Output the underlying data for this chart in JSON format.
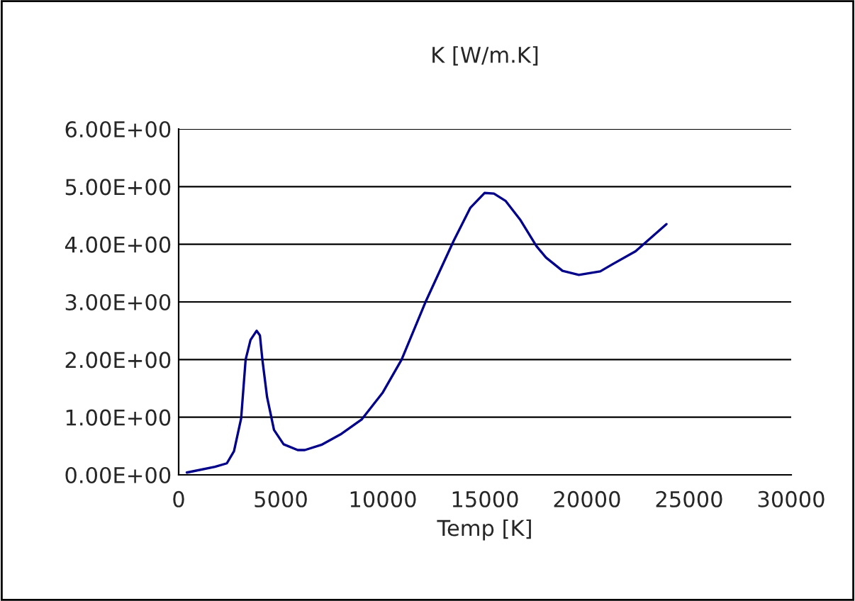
{
  "chart_data": {
    "type": "line",
    "title": "K [W/m.K]",
    "xlabel": "Temp [K]",
    "series": [
      {
        "color": "#00008b",
        "x": [
          400,
          1780,
          2360,
          2710,
          3060,
          3280,
          3520,
          3820,
          3980,
          4100,
          4330,
          4670,
          5140,
          5830,
          6180,
          6990,
          7920,
          8960,
          10000,
          10920,
          12080,
          13470,
          14280,
          14980,
          15440,
          16020,
          16720,
          17520,
          17990,
          18800,
          19600,
          20650,
          21230,
          22380,
          23890
        ],
        "values": [
          0.04,
          0.14,
          0.2,
          0.41,
          0.98,
          2.0,
          2.34,
          2.5,
          2.42,
          2.0,
          1.35,
          0.78,
          0.53,
          0.43,
          0.43,
          0.52,
          0.7,
          0.96,
          1.43,
          2.0,
          2.99,
          4.06,
          4.63,
          4.89,
          4.88,
          4.75,
          4.43,
          3.97,
          3.77,
          3.54,
          3.47,
          3.53,
          3.65,
          3.88,
          4.35
        ]
      }
    ],
    "xlim": [
      0,
      30000
    ],
    "xticks": [
      0,
      5000,
      10000,
      15000,
      20000,
      25000,
      30000
    ],
    "ylim": [
      0,
      6
    ],
    "yticks": [
      {
        "value": 0,
        "label": "0.00E+00"
      },
      {
        "value": 1,
        "label": "1.00E+00"
      },
      {
        "value": 2,
        "label": "2.00E+00"
      },
      {
        "value": 3,
        "label": "3.00E+00"
      },
      {
        "value": 4,
        "label": "4.00E+00"
      },
      {
        "value": 5,
        "label": "5.00E+00"
      },
      {
        "value": 6,
        "label": "6.00E+00"
      }
    ],
    "grid": "y",
    "legend": false,
    "marker": "none",
    "line_style": "solid"
  }
}
